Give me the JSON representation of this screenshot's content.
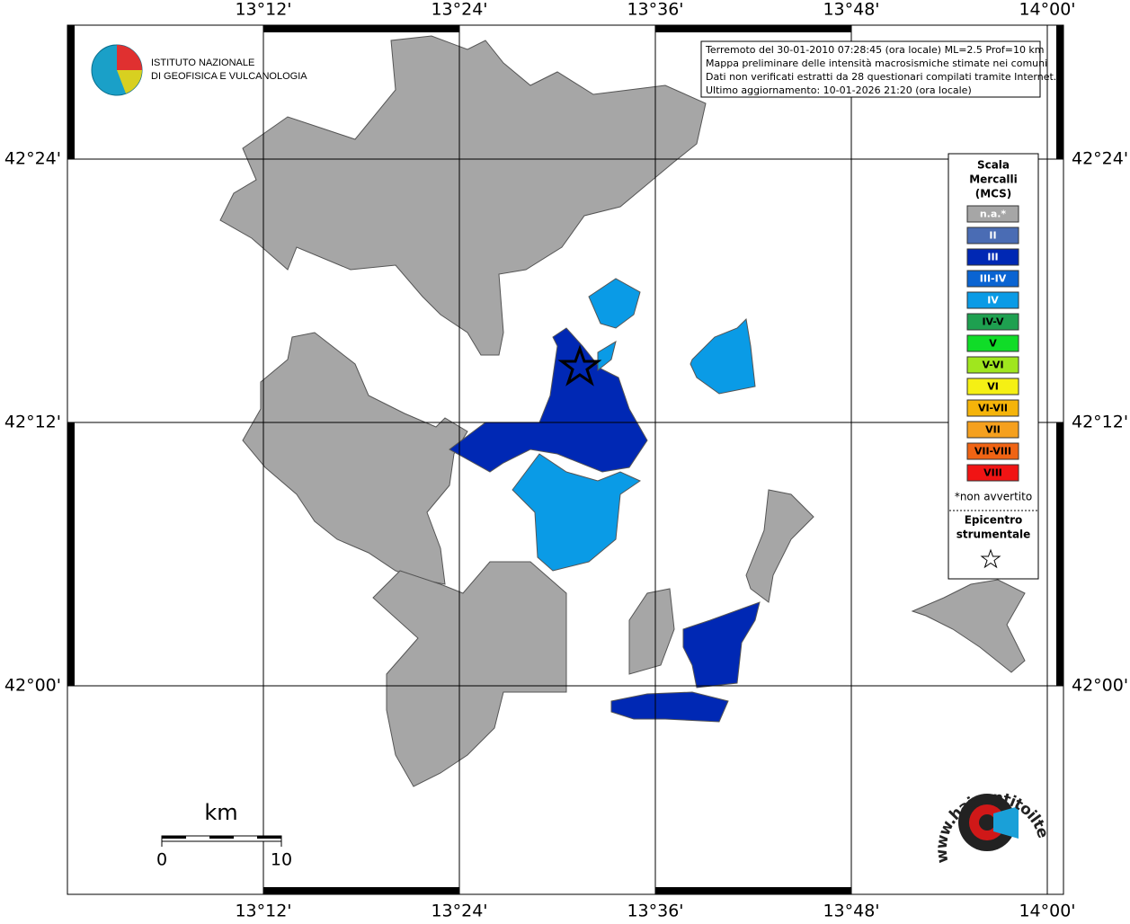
{
  "map": {
    "longitude_labels": [
      "13°12'",
      "13°24'",
      "13°36'",
      "13°48'",
      "14°00'"
    ],
    "latitude_labels": [
      "42°24'",
      "42°12'",
      "42°00'"
    ],
    "institute": {
      "line1": "ISTITUTO NAZIONALE",
      "line2": "DI GEOFISICA E VULCANOLOGIA"
    },
    "info": [
      "Terremoto del 30-01-2010 07:28:45 (ora locale) ML=2.5 Prof=10 km",
      "Mappa preliminare delle intensità macrosismiche stimate nei comuni",
      "Dati non verificati estratti da 28 questionari compilati tramite Internet.",
      "Ultimo aggiornamento: 10-01-2026 21:20 (ora locale)"
    ],
    "legend": {
      "title": [
        "Scala",
        "Mercalli",
        "(MCS)"
      ],
      "items": [
        {
          "label": "n.a.*",
          "color": "#a6a6a6"
        },
        {
          "label": "II",
          "color": "#4a6cb4"
        },
        {
          "label": "III",
          "color": "#0028b4"
        },
        {
          "label": "III-IV",
          "color": "#0a64d2"
        },
        {
          "label": "IV",
          "color": "#0a9be6"
        },
        {
          "label": "IV-V",
          "color": "#1ea050"
        },
        {
          "label": "V",
          "color": "#10dc28"
        },
        {
          "label": "V-VI",
          "color": "#a0e61e"
        },
        {
          "label": "VI",
          "color": "#f5f014"
        },
        {
          "label": "VI-VII",
          "color": "#f5b40a"
        },
        {
          "label": "VII",
          "color": "#f5a01e"
        },
        {
          "label": "VII-VIII",
          "color": "#f06414"
        },
        {
          "label": "VIII",
          "color": "#f01414"
        }
      ],
      "note": "*non avvertito",
      "epicenter": [
        "Epicentro",
        "strumentale"
      ]
    },
    "scale": {
      "unit": "km",
      "start": "0",
      "end": "10"
    },
    "site": "www.haisentitoilterremoto.it"
  }
}
